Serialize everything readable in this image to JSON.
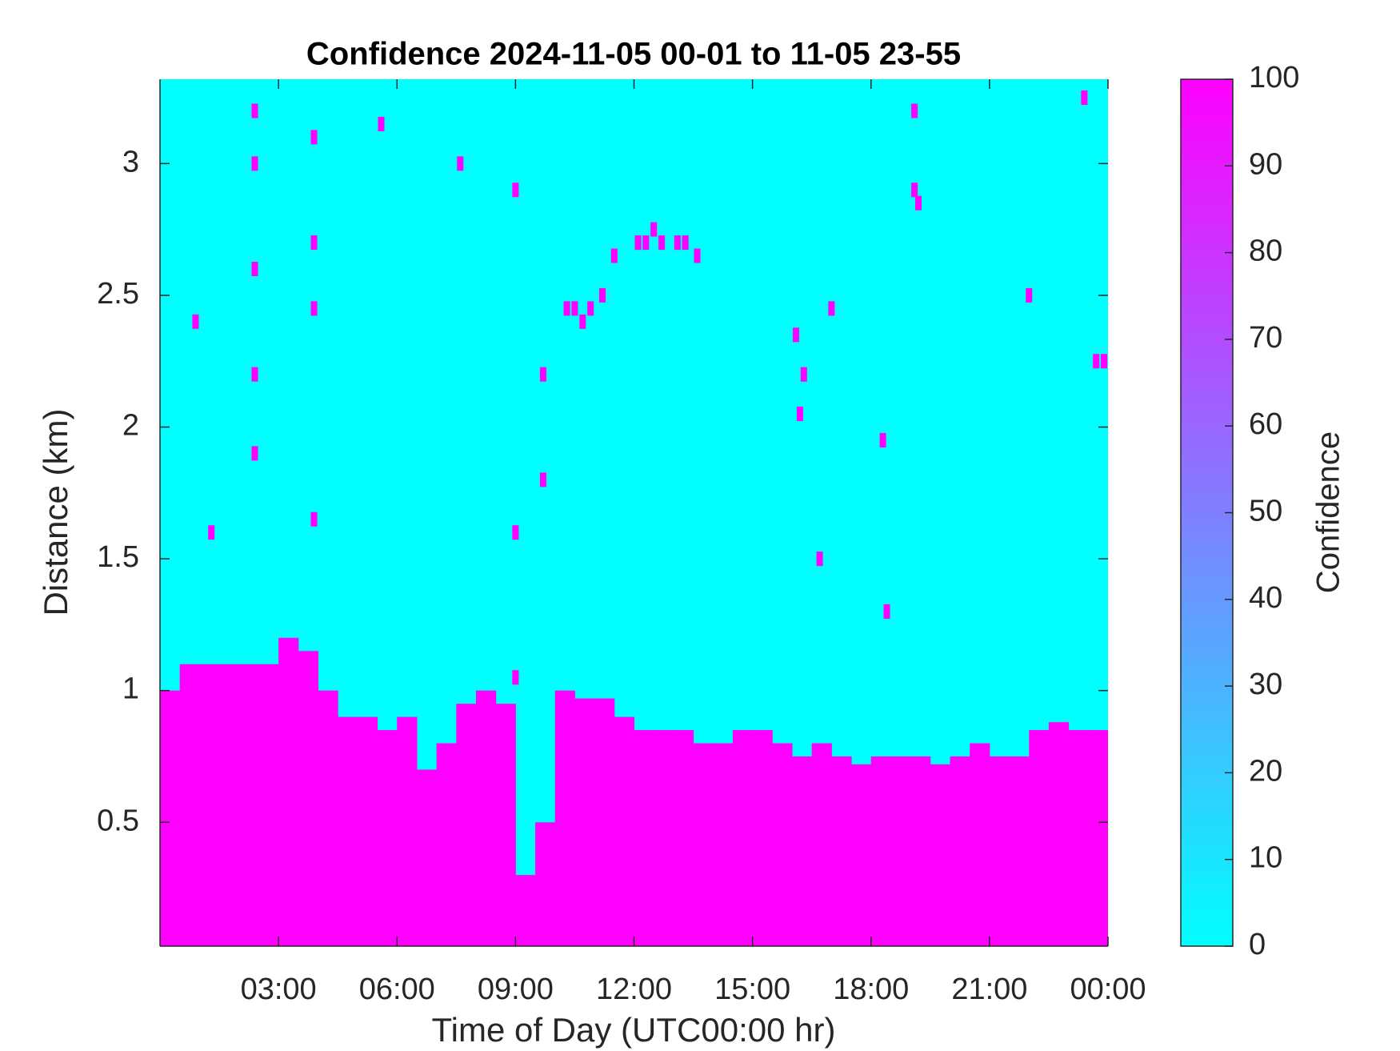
{
  "chart_data": {
    "type": "heatmap",
    "title": "Confidence 2024-11-05 00-01 to 11-05 23-55",
    "xlabel": "Time of Day (UTC00:00 hr)",
    "ylabel": "Distance (km)",
    "colorbar_label": "Confidence",
    "colormap": [
      "#00ffff",
      "#ff00ff"
    ],
    "clim": [
      0,
      100
    ],
    "cticks": [
      0,
      10,
      20,
      30,
      40,
      50,
      60,
      70,
      80,
      90,
      100
    ],
    "background_value": 0,
    "fill_value": 100,
    "xlim": [
      0,
      24
    ],
    "ylim": [
      0.03,
      3.32
    ],
    "xticks": [
      {
        "value": 3,
        "label": "03:00"
      },
      {
        "value": 6,
        "label": "06:00"
      },
      {
        "value": 9,
        "label": "09:00"
      },
      {
        "value": 12,
        "label": "12:00"
      },
      {
        "value": 15,
        "label": "15:00"
      },
      {
        "value": 18,
        "label": "18:00"
      },
      {
        "value": 21,
        "label": "21:00"
      },
      {
        "value": 24,
        "label": "00:00"
      }
    ],
    "yticks": [
      0.5,
      1,
      1.5,
      2,
      2.5,
      3
    ],
    "xbins": [
      0,
      0.5,
      1,
      1.5,
      2,
      2.5,
      3,
      3.5,
      4,
      4.5,
      5,
      5.5,
      6,
      6.5,
      7,
      7.5,
      8,
      8.5,
      9,
      9.5,
      10,
      10.5,
      11,
      11.5,
      12,
      12.5,
      13,
      13.5,
      14,
      14.5,
      15,
      15.5,
      16,
      16.5,
      17,
      17.5,
      18,
      18.5,
      19,
      19.5,
      20,
      20.5,
      21,
      21.5,
      22,
      22.5,
      23,
      23.5,
      24
    ],
    "values": [
      1.0,
      1.1,
      1.1,
      1.1,
      1.1,
      1.1,
      1.2,
      1.15,
      1.0,
      0.9,
      0.9,
      0.85,
      0.9,
      0.7,
      0.8,
      0.95,
      1.0,
      0.95,
      0.3,
      0.5,
      1.0,
      0.97,
      0.97,
      0.9,
      0.85,
      0.85,
      0.85,
      0.8,
      0.8,
      0.85,
      0.85,
      0.8,
      0.75,
      0.8,
      0.75,
      0.72,
      0.75,
      0.75,
      0.75,
      0.72,
      0.75,
      0.8,
      0.75,
      0.75,
      0.85,
      0.88,
      0.85,
      0.85
    ],
    "points": {
      "x": [
        2.4,
        2.4,
        2.4,
        2.4,
        2.4,
        1.3,
        0.9,
        3.9,
        3.9,
        3.9,
        3.9,
        5.6,
        7.6,
        9.0,
        9.0,
        9.0,
        9.7,
        9.7,
        10.3,
        10.5,
        10.7,
        10.9,
        11.2,
        11.5,
        12.1,
        12.3,
        12.5,
        12.7,
        13.1,
        13.3,
        13.6,
        16.1,
        16.3,
        16.2,
        17.0,
        18.3,
        19.1,
        19.1,
        19.2,
        18.4,
        16.7,
        21.8,
        22.5,
        21.3,
        23.7,
        23.9,
        23.4,
        22.0
      ],
      "y": [
        3.2,
        3.0,
        2.6,
        2.2,
        1.9,
        1.6,
        2.4,
        3.1,
        2.7,
        2.45,
        1.65,
        3.15,
        3.0,
        2.9,
        1.6,
        1.05,
        2.2,
        1.8,
        2.45,
        2.45,
        2.4,
        2.45,
        2.5,
        2.65,
        2.7,
        2.7,
        2.75,
        2.7,
        2.7,
        2.7,
        2.65,
        2.35,
        2.2,
        2.05,
        2.45,
        1.95,
        3.2,
        2.9,
        2.85,
        1.3,
        1.5,
        0.5,
        0.45,
        0.35,
        2.25,
        2.25,
        3.25,
        2.5
      ]
    }
  }
}
